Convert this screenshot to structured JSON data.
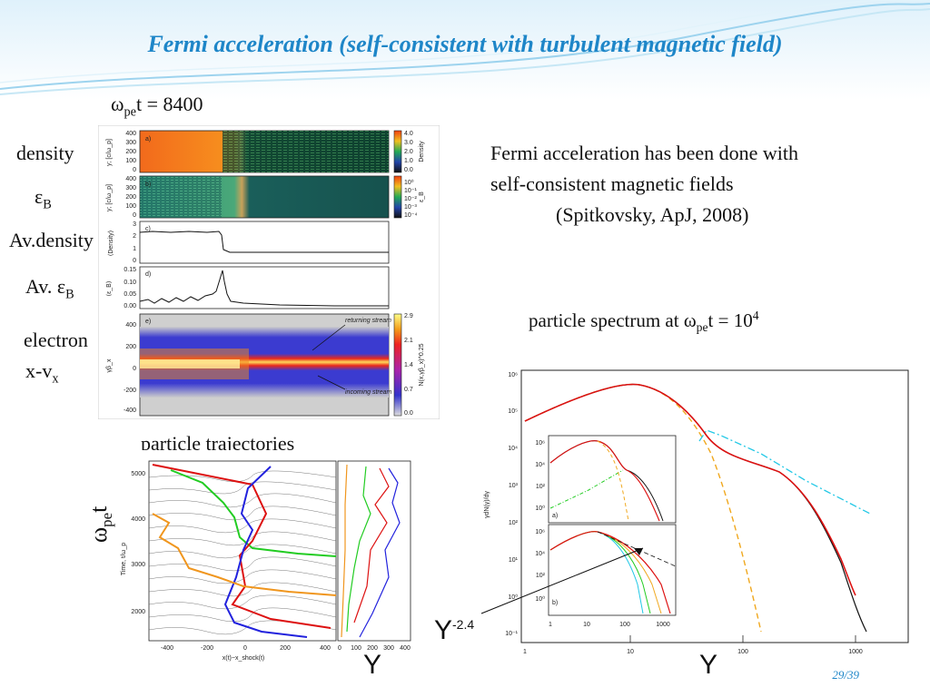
{
  "slide": {
    "title": "Fermi acceleration (self-consistent with turbulent magnetic field)",
    "slide_number": "29/39"
  },
  "left_figure": {
    "time_label": {
      "symbol": "ω",
      "sub": "pe",
      "rest": "t = 8400"
    },
    "row_labels": {
      "density": "density",
      "eps_b_symbol": "ε",
      "eps_b_sub": "B",
      "av_density": "Av.density",
      "av_eps_prefix": "Av. ε",
      "av_eps_sub": "B",
      "electron_line1": "electron",
      "electron_line2_main": "x-v",
      "electron_line2_sub": "x"
    },
    "panel_letters": [
      "a)",
      "b)",
      "c)",
      "d)",
      "e)"
    ],
    "panel_a": {
      "y_axis": "y; [c/ω_p]",
      "y_ticks": [
        "400",
        "300",
        "200",
        "100",
        "0"
      ],
      "colorbar_ticks": [
        "4.0",
        "3.0",
        "2.0",
        "1.0",
        "0.0"
      ],
      "colorbar_label": "Density"
    },
    "panel_b": {
      "y_axis": "y; [c/ω_p]",
      "y_ticks": [
        "400",
        "300",
        "200",
        "100",
        "0"
      ],
      "colorbar_ticks": [
        "10⁰",
        "10⁻¹",
        "10⁻²",
        "10⁻³",
        "10⁻⁴"
      ],
      "colorbar_label": "ε_B"
    },
    "panel_c": {
      "y_axis": "⟨Density⟩",
      "y_ticks": [
        "3",
        "2",
        "1",
        "0"
      ]
    },
    "panel_d": {
      "y_axis": "⟨ε_B⟩",
      "y_ticks": [
        "0.15",
        "0.10",
        "0.05",
        "0.00"
      ]
    },
    "panel_e": {
      "y_axis": "γβ_x",
      "y_ticks": [
        "400",
        "200",
        "0",
        "-200",
        "-400"
      ],
      "colorbar_ticks": [
        "2.9",
        "2.1",
        "1.4",
        "0.7",
        "0.0"
      ],
      "colorbar_label": "N(x,γβ_x)^0.25",
      "annotation_top": "returning stream",
      "annotation_bottom": "incoming stream"
    }
  },
  "trajectories": {
    "caption": "particle trajectories",
    "y_label_symbol": "ω",
    "y_label_sub": "pe",
    "y_label_rest": "t",
    "inner_y_label": "Time, t/ω_p",
    "y_ticks": [
      "5000",
      "4000",
      "3000",
      "2000"
    ],
    "x_ticks": [
      "-400",
      "-200",
      "0",
      "200",
      "400"
    ],
    "x_label": "x(t)−x_shock(t)",
    "right_x_ticks": [
      "0",
      "100",
      "200",
      "300",
      "400"
    ],
    "gamma_label": "Y",
    "colors": {
      "green": "#22cc22",
      "red": "#dd1111",
      "blue": "#2222dd",
      "orange": "#f0961e"
    }
  },
  "right_text": {
    "line1": "Fermi acceleration has been done with",
    "line2": "self-consistent magnetic fields",
    "citation": "(Spitkovsky, ApJ, 2008)",
    "spectrum_prefix": "particle spectrum at ",
    "spectrum_symbol": "ω",
    "spectrum_sub": "pe",
    "spectrum_rest": "t = 10",
    "spectrum_exp": "4"
  },
  "spectrum_plot": {
    "y_axis_label": "γdN(γ)/dγ",
    "y_ticks": [
      "10⁶",
      "10⁵",
      "10⁴",
      "10³",
      "10²",
      "10¹",
      "10⁰",
      "10⁻¹"
    ],
    "x_ticks": [
      "1",
      "10",
      "100",
      "1000"
    ],
    "x_axis_letter": "Y",
    "power_law_letter": "Y",
    "power_law_exp": "-2.4",
    "inset_a": {
      "label": "a)",
      "y_ticks": [
        "10⁶",
        "10⁴",
        "10²",
        "10⁰"
      ]
    },
    "inset_b": {
      "label": "b)",
      "y_ticks": [
        "10⁶",
        "10⁴",
        "10²",
        "10⁰"
      ],
      "x_ticks": [
        "1",
        "10",
        "100",
        "1000"
      ]
    }
  }
}
